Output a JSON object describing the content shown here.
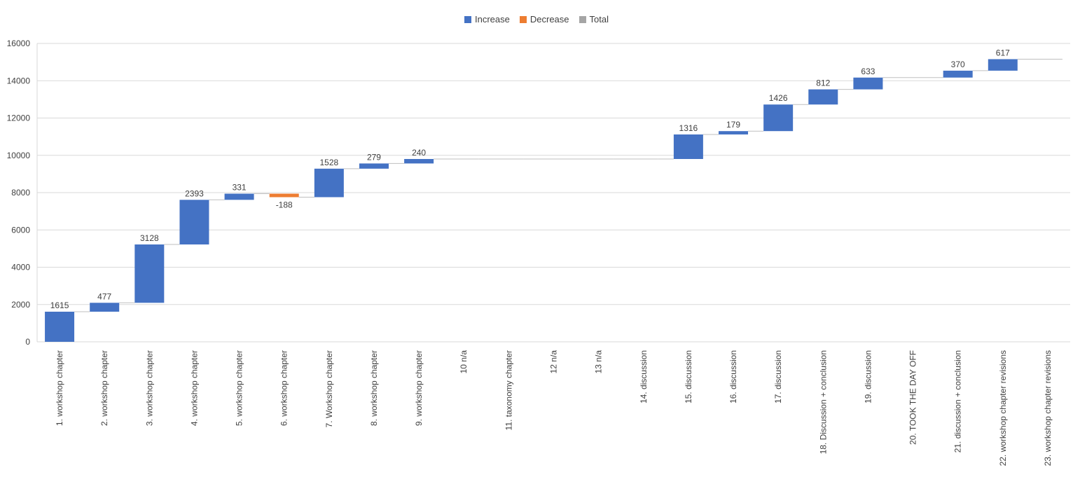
{
  "chart_data": {
    "type": "bar",
    "subtype": "waterfall",
    "title": "",
    "xlabel": "",
    "ylabel": "",
    "ylim": [
      0,
      16000
    ],
    "yticks": [
      0,
      2000,
      4000,
      6000,
      8000,
      10000,
      12000,
      14000,
      16000
    ],
    "grid": true,
    "legend_position": "top-center",
    "legend": [
      {
        "name": "Increase",
        "color": "#4472C4"
      },
      {
        "name": "Decrease",
        "color": "#ED7D31"
      },
      {
        "name": "Total",
        "color": "#A5A5A5"
      }
    ],
    "categories": [
      "1. workshop chapter",
      "2. workshop chapter",
      "3. workshop chapter",
      "4. workshop chapter",
      "5. workshop chapter",
      "6. workshop chapter",
      "7. Workshop chapter",
      "8. workshop chapter",
      "9. workshop chapter",
      "10 n/a",
      "11. taxonomy chapter",
      "12  n/a",
      "13  n/a",
      "14. discussion",
      "15. discussion",
      "16. discussion",
      "17. discussion",
      "18. Discussion + conclusion",
      "19. discussion",
      "20. TOOK THE DAY OFF",
      "21. discussion + conclusion",
      "22. workshop chapter revisions",
      "23. workshop chapter revisions"
    ],
    "values": [
      1615,
      477,
      3128,
      2393,
      331,
      -188,
      1528,
      279,
      240,
      null,
      null,
      null,
      null,
      null,
      1316,
      179,
      1426,
      812,
      633,
      null,
      370,
      617,
      null
    ],
    "data_labels": [
      "1615",
      "477",
      "3128",
      "2393",
      "331",
      "-188",
      "1528",
      "279",
      "240",
      "",
      "",
      "",
      "",
      "",
      "1316",
      "179",
      "1426",
      "812",
      "633",
      "",
      "370",
      "617",
      ""
    ]
  }
}
